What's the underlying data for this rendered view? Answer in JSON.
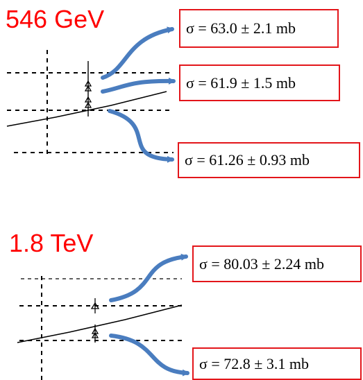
{
  "panels": [
    {
      "label": "546 GeV",
      "results": [
        {
          "text": "σ  = 63.0 ± 2.1 mb"
        },
        {
          "text": "σ  = 61.9 ± 1.5 mb"
        },
        {
          "text": "σ  = 61.26  ±  0.93 mb"
        }
      ]
    },
    {
      "label": "1.8 TeV",
      "results": [
        {
          "text": "σ = 80.03 ± 2.24 mb"
        },
        {
          "text": "σ  = 72.8 ± 3.1 mb"
        }
      ]
    }
  ],
  "colors": {
    "label": "#ff0000",
    "box_border": "#e3151a",
    "arrow": "#4a7dbf",
    "plot": "#000000"
  }
}
